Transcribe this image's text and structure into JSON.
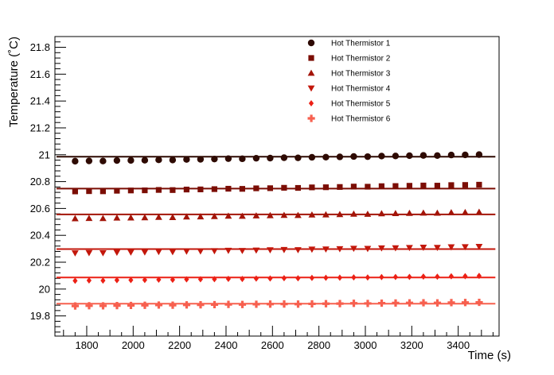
{
  "chart_data": {
    "type": "scatter",
    "title": "",
    "xlabel": "Time (s)",
    "ylabel": "Temperature (˚C)",
    "xlim": [
      1663,
      3576
    ],
    "ylim": [
      19.65,
      21.88
    ],
    "grid": false,
    "legend_position": "top-center-right",
    "x_major_ticks": [
      1800,
      2000,
      2200,
      2400,
      2600,
      2800,
      3000,
      3200,
      3400
    ],
    "x_minor_step": 50,
    "x_medium_step": 100,
    "y_major_ticks": [
      19.8,
      20,
      20.2,
      20.4,
      20.6,
      20.8,
      21,
      21.2,
      21.4,
      21.6,
      21.8
    ],
    "y_minor_step": 0.04,
    "x": [
      1750,
      1810,
      1870,
      1930,
      1990,
      2050,
      2110,
      2170,
      2230,
      2290,
      2350,
      2410,
      2470,
      2530,
      2590,
      2650,
      2710,
      2770,
      2830,
      2890,
      2950,
      3010,
      3070,
      3130,
      3190,
      3250,
      3310,
      3370,
      3430,
      3490
    ],
    "fit_range": [
      1670,
      3560
    ],
    "series": [
      {
        "name": "Hot Thermistor 1",
        "marker": "circle",
        "color": "#2e0a02",
        "fit_line": 20.985,
        "values": [
          20.952,
          20.954,
          20.953,
          20.957,
          20.958,
          20.959,
          20.962,
          20.961,
          20.965,
          20.966,
          20.968,
          20.971,
          20.97,
          20.974,
          20.975,
          20.978,
          20.977,
          20.981,
          20.982,
          20.984,
          20.987,
          20.986,
          20.99,
          20.991,
          20.993,
          20.995,
          20.994,
          20.998,
          20.999,
          21.001
        ]
      },
      {
        "name": "Hot Thermistor 2",
        "marker": "square",
        "color": "#7b0d04",
        "fit_line": 20.748,
        "values": [
          20.727,
          20.729,
          20.728,
          20.732,
          20.734,
          20.735,
          20.738,
          20.737,
          20.741,
          20.742,
          20.744,
          20.747,
          20.746,
          20.75,
          20.751,
          20.754,
          20.753,
          20.757,
          20.758,
          20.76,
          20.763,
          20.762,
          20.766,
          20.767,
          20.769,
          20.771,
          20.77,
          20.774,
          20.775,
          20.777
        ]
      },
      {
        "name": "Hot Thermistor 3",
        "marker": "triangle-up",
        "color": "#a31408",
        "fit_line": 20.556,
        "values": [
          20.525,
          20.527,
          20.526,
          20.53,
          20.531,
          20.532,
          20.535,
          20.534,
          20.538,
          20.539,
          20.541,
          20.544,
          20.543,
          20.546,
          20.548,
          20.55,
          20.549,
          20.553,
          20.554,
          20.556,
          20.559,
          20.558,
          20.562,
          20.563,
          20.565,
          20.567,
          20.566,
          20.57,
          20.571,
          20.573
        ]
      },
      {
        "name": "Hot Thermistor 4",
        "marker": "triangle-down",
        "color": "#c3170b",
        "fit_line": 20.298,
        "values": [
          20.268,
          20.27,
          20.269,
          20.273,
          20.274,
          20.275,
          20.278,
          20.277,
          20.281,
          20.282,
          20.284,
          20.287,
          20.286,
          20.289,
          20.291,
          20.293,
          20.292,
          20.296,
          20.297,
          20.299,
          20.302,
          20.301,
          20.305,
          20.306,
          20.308,
          20.31,
          20.309,
          20.313,
          20.314,
          20.316
        ]
      },
      {
        "name": "Hot Thermistor 5",
        "marker": "diamond",
        "color": "#ec2015",
        "fit_line": 20.086,
        "values": [
          20.062,
          20.064,
          20.063,
          20.066,
          20.067,
          20.068,
          20.07,
          20.069,
          20.072,
          20.073,
          20.074,
          20.076,
          20.075,
          20.078,
          20.079,
          20.081,
          20.08,
          20.083,
          20.084,
          20.085,
          20.087,
          20.086,
          20.089,
          20.09,
          20.091,
          20.093,
          20.092,
          20.095,
          20.096,
          20.098
        ]
      },
      {
        "name": "Hot Thermistor 6",
        "marker": "plus",
        "color": "#f7604f",
        "fit_line": 19.891,
        "values": [
          19.874,
          19.876,
          19.875,
          19.877,
          19.878,
          19.879,
          19.881,
          19.88,
          19.882,
          19.883,
          19.884,
          19.886,
          19.885,
          19.887,
          19.888,
          19.889,
          19.888,
          19.89,
          19.891,
          19.892,
          19.894,
          19.893,
          19.895,
          19.896,
          19.897,
          19.898,
          19.897,
          19.899,
          19.9,
          19.901
        ]
      }
    ],
    "frame_color": "#000000",
    "background_color": "#ffffff"
  }
}
